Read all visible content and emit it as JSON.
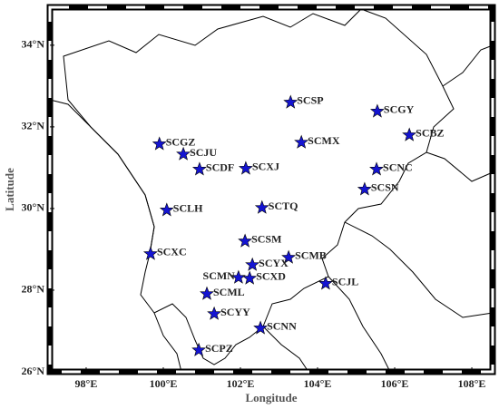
{
  "map": {
    "xlabel": "Longitude",
    "ylabel": "Latitude",
    "xlim": [
      97.06,
      108.54
    ],
    "ylim": [
      26,
      34.93
    ],
    "xticks": [
      {
        "value": 98,
        "label": "98°E"
      },
      {
        "value": 100,
        "label": "100°E"
      },
      {
        "value": 102,
        "label": "102°E"
      },
      {
        "value": 104,
        "label": "104°E"
      },
      {
        "value": 106,
        "label": "106°E"
      },
      {
        "value": 108,
        "label": "108°E"
      }
    ],
    "yticks": [
      {
        "value": 26,
        "label": "26°N"
      },
      {
        "value": 28,
        "label": "28°N"
      },
      {
        "value": 30,
        "label": "30°N"
      },
      {
        "value": 32,
        "label": "32°N"
      },
      {
        "value": 34,
        "label": "34°N"
      }
    ],
    "marker_color": "#1414d2",
    "stations": [
      {
        "name": "SCSP",
        "lon": 103.3,
        "lat": 32.6
      },
      {
        "name": "SCGY",
        "lon": 105.55,
        "lat": 32.38
      },
      {
        "name": "SCBZ",
        "lon": 106.38,
        "lat": 31.8
      },
      {
        "name": "SCGZ",
        "lon": 99.9,
        "lat": 31.58
      },
      {
        "name": "SCMX",
        "lon": 103.58,
        "lat": 31.62
      },
      {
        "name": "SCJU",
        "lon": 100.52,
        "lat": 31.33
      },
      {
        "name": "SCDF",
        "lon": 100.94,
        "lat": 30.96
      },
      {
        "name": "SCXJ",
        "lon": 102.14,
        "lat": 30.98
      },
      {
        "name": "SCNC",
        "lon": 105.53,
        "lat": 30.96
      },
      {
        "name": "SCSN",
        "lon": 105.22,
        "lat": 30.47
      },
      {
        "name": "SCTQ",
        "lon": 102.56,
        "lat": 30.02
      },
      {
        "name": "SCLH",
        "lon": 100.09,
        "lat": 29.96
      },
      {
        "name": "SCSM",
        "lon": 102.12,
        "lat": 29.2
      },
      {
        "name": "SCXC",
        "lon": 99.67,
        "lat": 28.89
      },
      {
        "name": "SCMB",
        "lon": 103.25,
        "lat": 28.8
      },
      {
        "name": "SCYX",
        "lon": 102.31,
        "lat": 28.62
      },
      {
        "name": "SCMN",
        "lon": 101.95,
        "lat": 28.31
      },
      {
        "name": "SCXD",
        "lon": 102.24,
        "lat": 28.29
      },
      {
        "name": "SCJL",
        "lon": 104.21,
        "lat": 28.16
      },
      {
        "name": "SCML",
        "lon": 101.13,
        "lat": 27.91
      },
      {
        "name": "SCYY",
        "lon": 101.32,
        "lat": 27.42
      },
      {
        "name": "SCNN",
        "lon": 102.52,
        "lat": 27.07
      },
      {
        "name": "SCPZ",
        "lon": 100.92,
        "lat": 26.53
      }
    ]
  }
}
